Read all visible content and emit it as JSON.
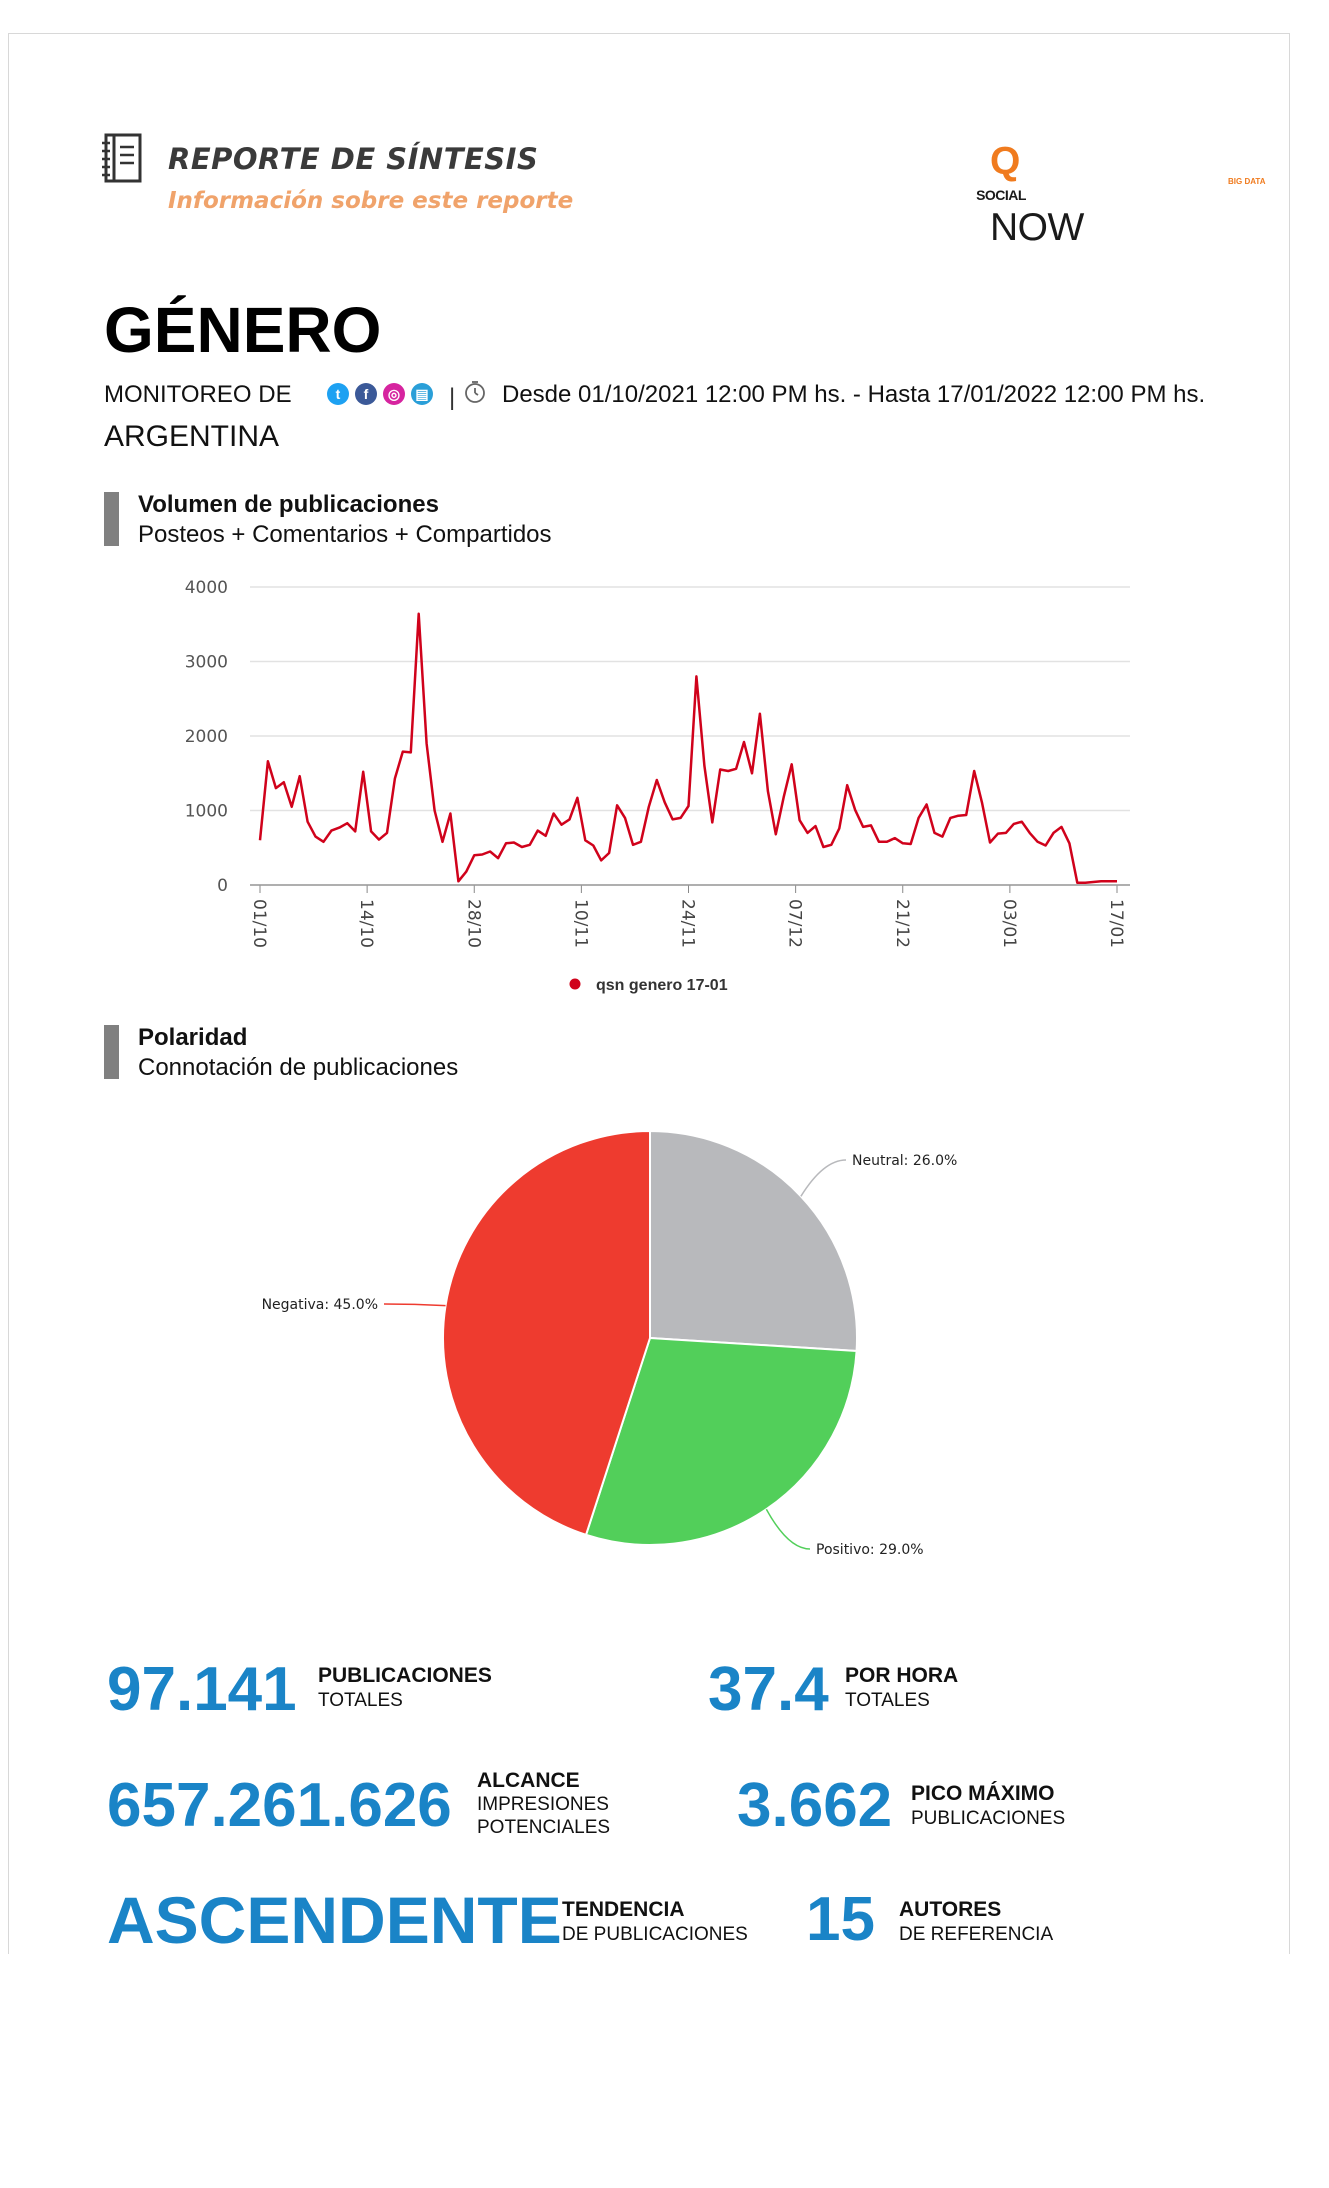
{
  "header": {
    "title": "REPORTE DE SÍNTESIS",
    "subtitle": "Información sobre este reporte",
    "logo_q": "Q",
    "logo_social": "SOCIAL",
    "logo_now": "NOW",
    "logo_sub": "BIG DATA"
  },
  "report": {
    "topic": "GÉNERO",
    "monitor_label": "MONITOREO DE",
    "country": "ARGENTINA",
    "separator": "|",
    "date_range": "Desde 01/10/2021 12:00 PM hs. - Hasta 17/01/2022 12:00 PM hs.",
    "networks": [
      {
        "name": "twitter-icon",
        "color": "#1da1f2",
        "glyph": "t"
      },
      {
        "name": "facebook-icon",
        "color": "#3b5998",
        "glyph": "f"
      },
      {
        "name": "instagram-icon",
        "color": "#d6249f",
        "glyph": "◎"
      },
      {
        "name": "news-icon",
        "color": "#2a9fd8",
        "glyph": "▤"
      }
    ]
  },
  "volume_section": {
    "title": "Volumen de publicaciones",
    "subtitle": "Posteos + Comentarios + Compartidos"
  },
  "polarity_section": {
    "title": "Polaridad",
    "subtitle": "Connotación de publicaciones"
  },
  "chart_data": [
    {
      "type": "line",
      "title": "",
      "xlabel": "",
      "ylabel": "",
      "ylim": [
        0,
        4000
      ],
      "yticks": [
        "0",
        "1000",
        "2000",
        "3000",
        "4000"
      ],
      "xtick_labels": [
        "01/10",
        "14/10",
        "28/10",
        "10/11",
        "24/11",
        "07/12",
        "21/12",
        "03/01",
        "17/01"
      ],
      "grid": true,
      "legend": "bottom",
      "series": [
        {
          "name": "qsn genero 17-01",
          "color": "#d0021b",
          "values": [
            600,
            1660,
            1300,
            1380,
            1050,
            1460,
            850,
            650,
            580,
            730,
            770,
            830,
            720,
            1520,
            720,
            610,
            700,
            1430,
            1790,
            1780,
            3640,
            1900,
            1000,
            580,
            960,
            50,
            180,
            400,
            410,
            450,
            360,
            560,
            570,
            510,
            540,
            730,
            660,
            960,
            810,
            880,
            1170,
            600,
            530,
            330,
            430,
            1070,
            900,
            540,
            580,
            1050,
            1410,
            1110,
            880,
            900,
            1060,
            2800,
            1600,
            840,
            1550,
            1530,
            1560,
            1920,
            1500,
            2300,
            1260,
            680,
            1180,
            1620,
            870,
            700,
            790,
            510,
            540,
            760,
            1340,
            1010,
            780,
            800,
            580,
            580,
            630,
            560,
            550,
            900,
            1080,
            700,
            650,
            900,
            930,
            940,
            1530,
            1100,
            570,
            690,
            700,
            820,
            850,
            700,
            580,
            530,
            700,
            780,
            560,
            30,
            30,
            40,
            50,
            50,
            50
          ]
        }
      ]
    },
    {
      "type": "pie",
      "title": "",
      "slices": [
        {
          "label": "Neutral: 26.0%",
          "name": "Neutral",
          "value": 26.0,
          "color": "#b8b9bc"
        },
        {
          "label": "Positivo: 29.0%",
          "name": "Positivo",
          "value": 29.0,
          "color": "#52cf5a"
        },
        {
          "label": "Negativa: 45.0%",
          "name": "Negativa",
          "value": 45.0,
          "color": "#ee3b2f"
        }
      ]
    }
  ],
  "stats": {
    "publicaciones": {
      "value": "97.141",
      "label1": "PUBLICACIONES",
      "label2": "TOTALES"
    },
    "por_hora": {
      "value": "37.4",
      "label1": "POR HORA",
      "label2": "TOTALES"
    },
    "alcance": {
      "value": "657.261.626",
      "label1": "ALCANCE",
      "label2": "IMPRESIONES",
      "label3": "POTENCIALES"
    },
    "pico": {
      "value": "3.662",
      "label1": "PICO MÁXIMO",
      "label2": "PUBLICACIONES"
    },
    "tendencia": {
      "value": "ASCENDENTE",
      "label1": "TENDENCIA",
      "label2": "DE PUBLICACIONES"
    },
    "autores": {
      "value": "15",
      "label1": "AUTORES",
      "label2": "DE REFERENCIA"
    }
  }
}
